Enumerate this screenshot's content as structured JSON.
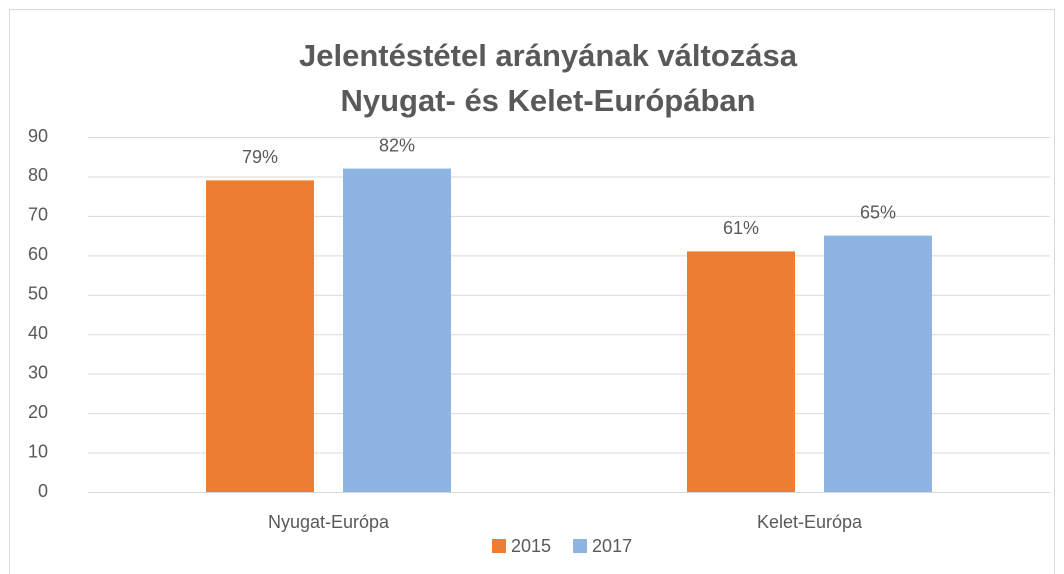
{
  "chart_data": {
    "type": "bar",
    "title": [
      "Jelentéstétel arányának változása",
      "Nyugat- és Kelet-Európában"
    ],
    "categories": [
      "Nyugat-Európa",
      "Kelet-Európa"
    ],
    "series": [
      {
        "name": "2015",
        "color": "#ed7d31",
        "values": [
          79,
          61
        ],
        "value_labels": [
          "79%",
          "61%"
        ]
      },
      {
        "name": "2017",
        "color": "#8eb4e3",
        "values": [
          82,
          65
        ],
        "value_labels": [
          "82%",
          "65%"
        ]
      }
    ],
    "ylim": [
      0,
      90
    ],
    "yticks": [
      0,
      10,
      20,
      30,
      40,
      50,
      60,
      70,
      80,
      90
    ],
    "grid": true,
    "legend": "bottom"
  }
}
